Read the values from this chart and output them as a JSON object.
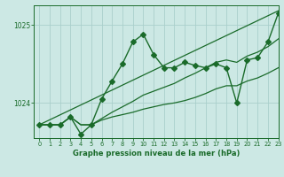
{
  "title": "Graphe pression niveau de la mer (hPa)",
  "background_color": "#cce8e4",
  "plot_bg_color": "#cce8e4",
  "grid_color": "#aacfcc",
  "line_color": "#1a6b2a",
  "ylim": [
    1023.55,
    1025.25
  ],
  "xlim": [
    -0.5,
    23
  ],
  "yticks": [
    1024,
    1025
  ],
  "xtick_labels": [
    "0",
    "1",
    "2",
    "3",
    "4",
    "5",
    "6",
    "7",
    "8",
    "9",
    "10",
    "11",
    "12",
    "13",
    "14",
    "15",
    "16",
    "17",
    "18",
    "19",
    "20",
    "21",
    "22",
    "23"
  ],
  "series": [
    {
      "x": [
        0,
        23
      ],
      "y": [
        1023.72,
        1025.18
      ],
      "marker": null,
      "linewidth": 0.9
    },
    {
      "x": [
        0,
        1,
        2,
        3,
        4,
        5,
        6,
        7,
        8,
        9,
        10,
        11,
        12,
        13,
        14,
        15,
        16,
        17,
        18,
        19,
        20,
        21,
        22,
        23
      ],
      "y": [
        1023.72,
        1023.72,
        1023.72,
        1023.82,
        1023.72,
        1023.72,
        1023.8,
        1023.88,
        1023.95,
        1024.02,
        1024.1,
        1024.15,
        1024.2,
        1024.25,
        1024.32,
        1024.38,
        1024.45,
        1024.52,
        1024.55,
        1024.52,
        1024.6,
        1024.65,
        1024.72,
        1024.82
      ],
      "marker": null,
      "linewidth": 0.9
    },
    {
      "x": [
        0,
        1,
        2,
        3,
        4,
        5,
        6,
        7,
        8,
        9,
        10,
        11,
        12,
        13,
        14,
        15,
        16,
        17,
        18,
        19,
        20,
        21,
        22,
        23
      ],
      "y": [
        1023.72,
        1023.72,
        1023.72,
        1023.82,
        1023.72,
        1023.72,
        1023.78,
        1023.82,
        1023.85,
        1023.88,
        1023.92,
        1023.95,
        1023.98,
        1024.0,
        1024.03,
        1024.07,
        1024.12,
        1024.18,
        1024.22,
        1024.22,
        1024.28,
        1024.32,
        1024.38,
        1024.45
      ],
      "marker": null,
      "linewidth": 0.9
    },
    {
      "x": [
        0,
        1,
        2,
        3,
        4,
        5,
        6,
        7,
        8,
        9,
        10,
        11,
        12,
        13,
        14,
        15,
        16,
        17,
        18,
        19,
        20,
        21,
        22,
        23
      ],
      "y": [
        1023.72,
        1023.72,
        1023.72,
        1023.82,
        1023.6,
        1023.72,
        1024.05,
        1024.28,
        1024.5,
        1024.78,
        1024.88,
        1024.62,
        1024.45,
        1024.45,
        1024.52,
        1024.48,
        1024.45,
        1024.5,
        1024.45,
        1024.0,
        1024.55,
        1024.58,
        1024.78,
        1025.15
      ],
      "marker": "D",
      "markersize": 3.0,
      "linewidth": 1.0
    }
  ]
}
